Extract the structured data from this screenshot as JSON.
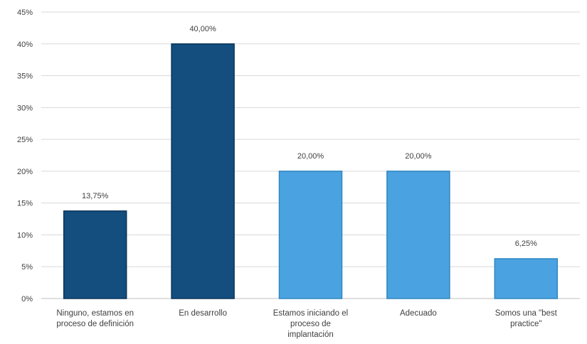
{
  "chart_data": {
    "type": "bar",
    "categories": [
      [
        "Ninguno, estamos en",
        "proceso de definición"
      ],
      [
        "En desarrollo"
      ],
      [
        "Estamos iniciando el",
        "proceso de",
        "implantación"
      ],
      [
        "Adecuado"
      ],
      [
        "Somos una \"best",
        "practice\""
      ]
    ],
    "values": [
      13.75,
      40.0,
      20.0,
      20.0,
      6.25
    ],
    "data_labels": [
      "13,75%",
      "40,00%",
      "20,00%",
      "20,00%",
      "6,25%"
    ],
    "y_ticks": [
      "0%",
      "5%",
      "10%",
      "15%",
      "20%",
      "25%",
      "30%",
      "35%",
      "40%",
      "45%"
    ],
    "ylim": [
      0,
      45
    ],
    "grid": true,
    "legend": "none",
    "title": "",
    "xlabel": "",
    "ylabel": "",
    "colors": {
      "dark_bar": "#134e7f",
      "dark_bar_edge": "#0b3558",
      "light_bar": "#4aa3e0",
      "light_bar_edge": "#2f86c2",
      "gridline": "#d9d9d9",
      "axis": "#bfbfbf"
    },
    "bar_tones": [
      "dark",
      "dark",
      "light",
      "light",
      "light"
    ]
  }
}
